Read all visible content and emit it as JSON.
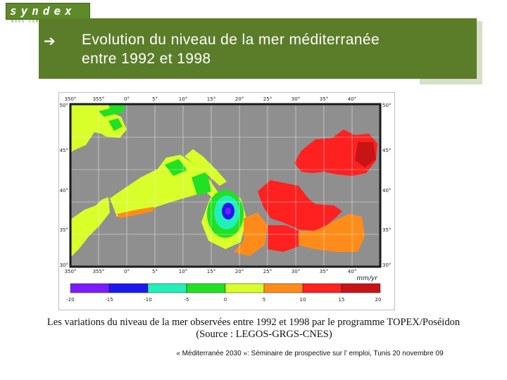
{
  "logo": {
    "name": "syndex",
    "subtitle": "NOUS.COM"
  },
  "title": {
    "bullet_icon": "right-arrow-icon",
    "line1": "Evolution du niveau de la mer méditerranée",
    "line2": "entre 1992 et 1998"
  },
  "map": {
    "top_ticks": [
      "350°",
      "355°",
      "0°",
      "5°",
      "10°",
      "15°",
      "20°",
      "25°",
      "30°",
      "35°",
      "40°"
    ],
    "bottom_ticks": [
      "350°",
      "355°",
      "0°",
      "5°",
      "10°",
      "15°",
      "20°",
      "25°",
      "30°",
      "35°",
      "40°"
    ],
    "left_ticks": [
      "50°",
      "45°",
      "40°",
      "35°",
      "30°"
    ],
    "right_ticks": [
      "50°",
      "45°",
      "40°",
      "35°",
      "30°"
    ],
    "units": "mm/yr",
    "colors": {
      "land": "#8f8f8f",
      "frame": "#1a1a1a"
    },
    "legend": {
      "colors": [
        "#7a1cff",
        "#1a1af0",
        "#22f0b8",
        "#22e022",
        "#d8ff2a",
        "#ff8c1a",
        "#ff2020",
        "#c81414"
      ],
      "labels": [
        "-20",
        "-15",
        "-10",
        "-5",
        "0",
        "5",
        "10",
        "15",
        "20"
      ]
    }
  },
  "caption": {
    "line1": "Les variations du niveau de la mer observées entre 1992 et 1998 par le programme TOPEX/Poséidon",
    "line2": "(Source : LEGOS-GRGS-CNES)"
  },
  "footer": "« Méditerranée 2030 »: Séminaire de prospective sur l’ emploi, Tunis 20 novembre 09"
}
